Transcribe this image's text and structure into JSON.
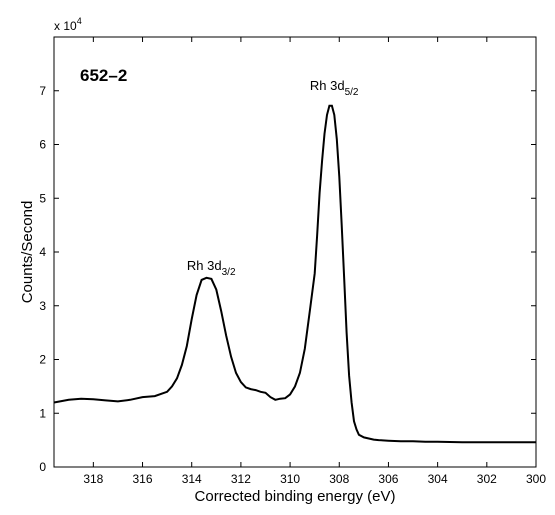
{
  "chart_data": {
    "type": "line",
    "title": "",
    "sample_label": "652–2",
    "xlabel": "Corrected binding energy (eV)",
    "ylabel": "Counts/Second",
    "y_scale_label": "x 10",
    "y_scale_exponent": "4",
    "x_reversed": true,
    "xlim": [
      319.6,
      300.0
    ],
    "ylim": [
      0,
      8
    ],
    "x_ticks": [
      318,
      316,
      314,
      312,
      310,
      308,
      306,
      304,
      302,
      300
    ],
    "x_tick_labels": [
      "318",
      "316",
      "314",
      "312",
      "310",
      "308",
      "306",
      "304",
      "302",
      "300"
    ],
    "y_ticks": [
      0,
      1,
      2,
      3,
      4,
      5,
      6,
      7
    ],
    "y_tick_labels": [
      "0",
      "1",
      "2",
      "3",
      "4",
      "5",
      "6",
      "7"
    ],
    "grid": false,
    "annotations": [
      {
        "base": "Rh 3d",
        "sub": "3/2",
        "x": 313.3,
        "y": 3.85
      },
      {
        "base": "Rh 3d",
        "sub": "5/2",
        "x": 308.3,
        "y": 7.2
      }
    ],
    "series": [
      {
        "x": [
          319.6,
          319.0,
          318.5,
          318.0,
          317.5,
          317.0,
          316.5,
          316.0,
          315.5,
          315.0,
          314.8,
          314.6,
          314.4,
          314.2,
          314.0,
          313.8,
          313.6,
          313.4,
          313.2,
          313.0,
          312.8,
          312.6,
          312.4,
          312.2,
          312.0,
          311.8,
          311.6,
          311.4,
          311.2,
          311.0,
          310.8,
          310.6,
          310.4,
          310.2,
          310.0,
          309.8,
          309.6,
          309.4,
          309.2,
          309.0,
          308.9,
          308.8,
          308.7,
          308.6,
          308.5,
          308.4,
          308.3,
          308.2,
          308.1,
          308.0,
          307.9,
          307.8,
          307.7,
          307.6,
          307.5,
          307.4,
          307.3,
          307.2,
          307.0,
          306.8,
          306.6,
          306.4,
          306.0,
          305.5,
          305.0,
          304.5,
          304.0,
          303.0,
          302.0,
          301.0,
          300.0
        ],
        "y": [
          1.2,
          1.25,
          1.27,
          1.26,
          1.24,
          1.22,
          1.25,
          1.3,
          1.32,
          1.4,
          1.5,
          1.65,
          1.9,
          2.25,
          2.75,
          3.2,
          3.48,
          3.52,
          3.5,
          3.3,
          2.9,
          2.45,
          2.05,
          1.75,
          1.58,
          1.48,
          1.45,
          1.43,
          1.4,
          1.38,
          1.3,
          1.25,
          1.27,
          1.28,
          1.35,
          1.5,
          1.75,
          2.2,
          2.9,
          3.6,
          4.3,
          5.1,
          5.7,
          6.2,
          6.55,
          6.72,
          6.72,
          6.55,
          6.1,
          5.4,
          4.5,
          3.5,
          2.5,
          1.7,
          1.2,
          0.85,
          0.7,
          0.6,
          0.55,
          0.53,
          0.51,
          0.5,
          0.49,
          0.48,
          0.48,
          0.47,
          0.47,
          0.46,
          0.46,
          0.46,
          0.46
        ]
      }
    ]
  }
}
